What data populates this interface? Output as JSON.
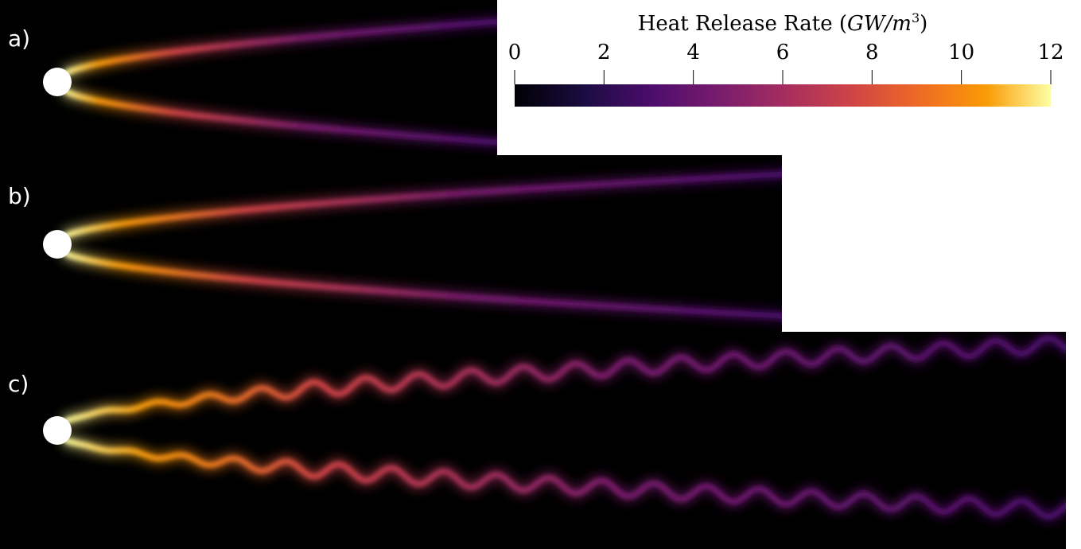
{
  "panels": [
    {
      "label": "a)"
    },
    {
      "label": "b)"
    },
    {
      "label": "c)"
    }
  ],
  "colorbar": {
    "title": "Heat Release Rate (",
    "unit": "GW/m",
    "exponent": "3",
    "unit_close": ")",
    "range": [
      0,
      12
    ],
    "ticks": [
      0,
      2,
      4,
      6,
      8,
      10,
      12
    ]
  }
}
